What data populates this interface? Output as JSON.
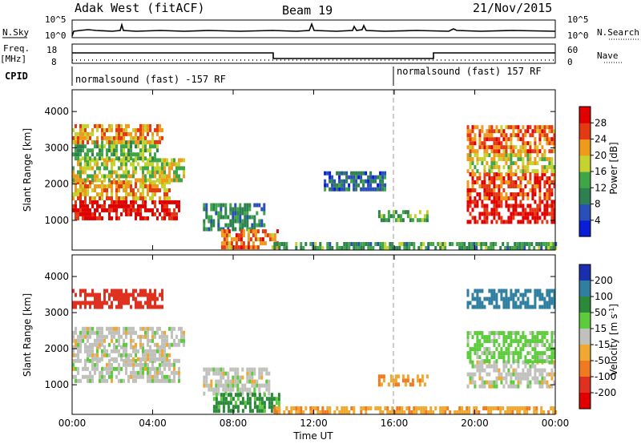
{
  "header": {
    "title": "Adak West (fitACF)",
    "beam": "Beam 19",
    "date": "21/Nov/2015"
  },
  "top_panels": {
    "nsky_label": "N.Sky",
    "nsearch_label": "N.Search",
    "noise_ticks": [
      "10^5",
      "10^0"
    ],
    "freq_label_line1": "Freq.",
    "freq_label_line2": "[MHz]",
    "freq_ticks": [
      "18",
      "8"
    ],
    "nave_label": "Nave",
    "nave_ticks": [
      "60",
      "0"
    ],
    "cpid_label": "CPID",
    "cpid_segments": [
      {
        "text": "normalsound (fast) -157 RF",
        "start_hour": 0
      },
      {
        "text": "normalsound (fast) 157 RF",
        "start_hour": 16
      }
    ]
  },
  "chart_data": [
    {
      "type": "heatmap",
      "title": "",
      "xlabel": "Time UT",
      "ylabel": "Slant Range [km]",
      "x_range_hours": [
        0,
        24
      ],
      "x_ticks": [
        "00:00",
        "04:00",
        "08:00",
        "12:00",
        "16:00",
        "20:00",
        "00:00"
      ],
      "y_range": [
        180,
        4600
      ],
      "y_ticks": [
        1000,
        2000,
        3000,
        4000
      ],
      "colorbar": {
        "label": "Power [dB]",
        "ticks": [
          "4",
          "8",
          "12",
          "16",
          "20",
          "24",
          "28"
        ],
        "colors": [
          "#0a1ed8",
          "#2a4fb8",
          "#2f8050",
          "#3ea646",
          "#c6d22e",
          "#f09a1c",
          "#e43a14",
          "#e00000"
        ]
      },
      "echo_regions": [
        {
          "t0": 0.0,
          "t1": 5.3,
          "r0": 1000,
          "r1": 1550,
          "level": 28
        },
        {
          "t0": 0.0,
          "t1": 4.8,
          "r0": 1550,
          "r1": 2050,
          "level": 20
        },
        {
          "t0": 0.0,
          "t1": 5.6,
          "r0": 2050,
          "r1": 2650,
          "level": 16
        },
        {
          "t0": 0.0,
          "t1": 4.2,
          "r0": 2650,
          "r1": 3100,
          "level": 12
        },
        {
          "t0": 0.0,
          "t1": 4.5,
          "r0": 3100,
          "r1": 3550,
          "level": 20
        },
        {
          "t0": 6.5,
          "t1": 9.6,
          "r0": 700,
          "r1": 1400,
          "level": 8
        },
        {
          "t0": 7.4,
          "t1": 10.2,
          "r0": 200,
          "r1": 700,
          "level": 22
        },
        {
          "t0": 10.0,
          "t1": 24.0,
          "r0": 180,
          "r1": 320,
          "level": 10
        },
        {
          "t0": 12.5,
          "t1": 15.5,
          "r0": 1800,
          "r1": 2300,
          "level": 6
        },
        {
          "t0": 15.2,
          "t1": 17.6,
          "r0": 950,
          "r1": 1200,
          "level": 12
        },
        {
          "t0": 19.6,
          "t1": 24.0,
          "r0": 900,
          "r1": 1550,
          "level": 28
        },
        {
          "t0": 19.6,
          "t1": 24.0,
          "r0": 1550,
          "r1": 2300,
          "level": 24
        },
        {
          "t0": 19.6,
          "t1": 24.0,
          "r0": 2300,
          "r1": 2850,
          "level": 16
        },
        {
          "t0": 19.6,
          "t1": 24.0,
          "r0": 2850,
          "r1": 3550,
          "level": 22
        }
      ]
    },
    {
      "type": "heatmap",
      "title": "",
      "xlabel": "Time UT",
      "ylabel": "Slant Range [km]",
      "x_range_hours": [
        0,
        24
      ],
      "x_ticks": [
        "00:00",
        "04:00",
        "08:00",
        "12:00",
        "16:00",
        "20:00",
        "00:00"
      ],
      "y_range": [
        180,
        4600
      ],
      "y_ticks": [
        1000,
        2000,
        3000,
        4000
      ],
      "colorbar": {
        "label": "Velocity [m s",
        "label_sup": "-1",
        "label_end": "]",
        "ticks": [
          "200",
          "100",
          "50",
          "15",
          "-15",
          "-50",
          "-100",
          "-200"
        ],
        "colors": [
          "#1a2fb0",
          "#2f7fa0",
          "#2a8a3a",
          "#5ccc3c",
          "#c0c0bc",
          "#f0a830",
          "#f07a20",
          "#e03020",
          "#e00000"
        ]
      },
      "echo_regions": [
        {
          "t0": 0.0,
          "t1": 5.3,
          "r0": 1050,
          "r1": 1650,
          "level": 0
        },
        {
          "t0": 0.0,
          "t1": 4.8,
          "r0": 1650,
          "r1": 2050,
          "level": 0
        },
        {
          "t0": 0.0,
          "t1": 5.6,
          "r0": 2050,
          "r1": 2600,
          "level": 0
        },
        {
          "t0": 0.0,
          "t1": 4.5,
          "r0": 3100,
          "r1": 3550,
          "level": -120
        },
        {
          "t0": 6.5,
          "t1": 9.8,
          "r0": 700,
          "r1": 1450,
          "level": 0
        },
        {
          "t0": 7.0,
          "t1": 10.3,
          "r0": 220,
          "r1": 700,
          "level": 60
        },
        {
          "t0": 10.0,
          "t1": 24.0,
          "r0": 180,
          "r1": 330,
          "level": -40
        },
        {
          "t0": 15.2,
          "t1": 17.6,
          "r0": 950,
          "r1": 1200,
          "level": -45
        },
        {
          "t0": 19.6,
          "t1": 24.0,
          "r0": 900,
          "r1": 1600,
          "level": 0
        },
        {
          "t0": 19.6,
          "t1": 24.0,
          "r0": 1600,
          "r1": 2450,
          "level": 30
        },
        {
          "t0": 19.6,
          "t1": 24.0,
          "r0": 3100,
          "r1": 3550,
          "level": 120
        }
      ]
    }
  ]
}
